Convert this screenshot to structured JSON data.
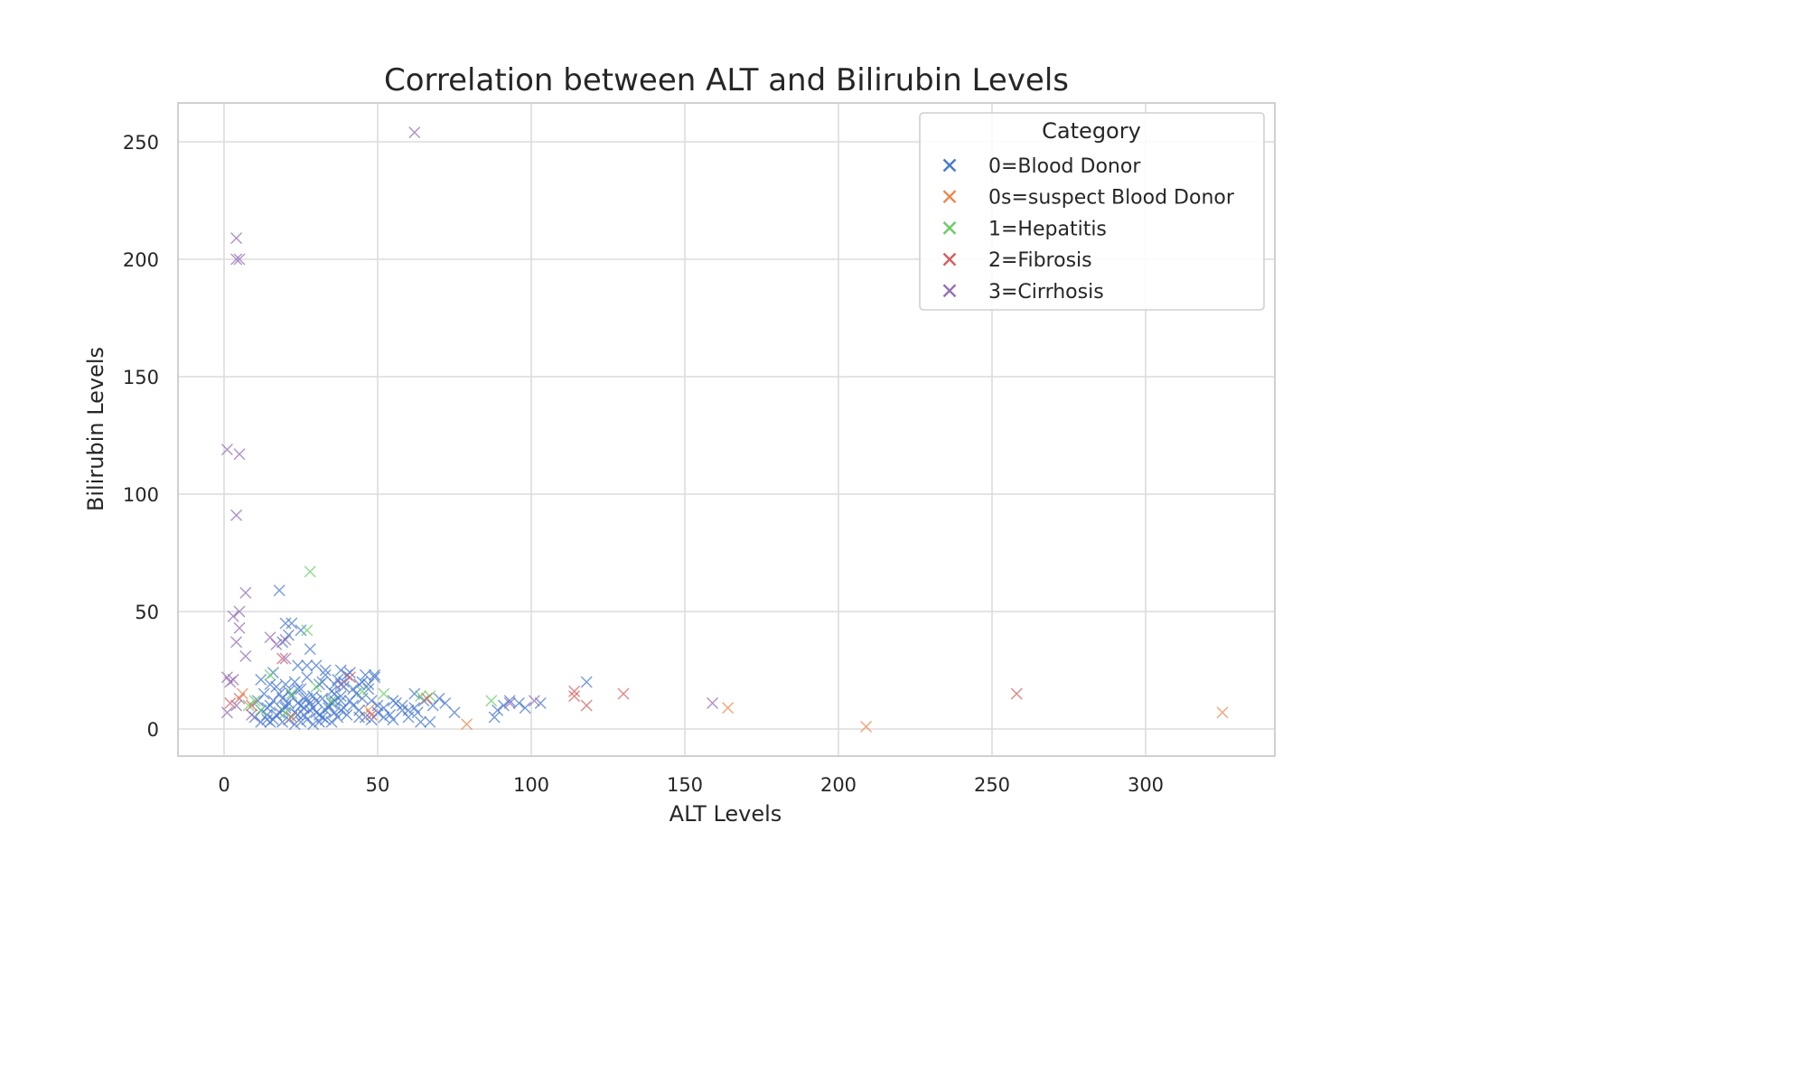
{
  "chart_data": {
    "type": "scatter",
    "title": "Correlation between ALT and Bilirubin Levels",
    "xlabel": "ALT Levels",
    "ylabel": "Bilirubin Levels",
    "xlim": [
      -15,
      340
    ],
    "ylim": [
      -12,
      267
    ],
    "x_ticks": [
      0,
      50,
      100,
      150,
      200,
      250,
      300
    ],
    "y_ticks": [
      0,
      50,
      100,
      150,
      200,
      250
    ],
    "grid": true,
    "marker": "x",
    "legend": {
      "title": "Category",
      "position": "top-right"
    },
    "series": [
      {
        "name": "0=Blood Donor",
        "color": "#4878d0",
        "points": [
          [
            10,
            5
          ],
          [
            12,
            8
          ],
          [
            14,
            6
          ],
          [
            15,
            10
          ],
          [
            16,
            4
          ],
          [
            18,
            7
          ],
          [
            20,
            9
          ],
          [
            22,
            5
          ],
          [
            24,
            11
          ],
          [
            26,
            6
          ],
          [
            28,
            8
          ],
          [
            30,
            12
          ],
          [
            32,
            5
          ],
          [
            34,
            9
          ],
          [
            36,
            7
          ],
          [
            38,
            14
          ],
          [
            40,
            6
          ],
          [
            42,
            10
          ],
          [
            44,
            8
          ],
          [
            46,
            5
          ],
          [
            48,
            12
          ],
          [
            50,
            7
          ],
          [
            52,
            9
          ],
          [
            54,
            6
          ],
          [
            56,
            11
          ],
          [
            58,
            8
          ],
          [
            60,
            5
          ],
          [
            62,
            9
          ],
          [
            11,
            12
          ],
          [
            13,
            15
          ],
          [
            17,
            18
          ],
          [
            19,
            13
          ],
          [
            21,
            16
          ],
          [
            23,
            20
          ],
          [
            25,
            17
          ],
          [
            27,
            22
          ],
          [
            29,
            14
          ],
          [
            31,
            19
          ],
          [
            33,
            23
          ],
          [
            35,
            16
          ],
          [
            37,
            21
          ],
          [
            39,
            18
          ],
          [
            41,
            24
          ],
          [
            43,
            15
          ],
          [
            45,
            20
          ],
          [
            47,
            17
          ],
          [
            49,
            22
          ],
          [
            19,
            3
          ],
          [
            21,
            4
          ],
          [
            23,
            2
          ],
          [
            25,
            3
          ],
          [
            27,
            4
          ],
          [
            29,
            2
          ],
          [
            31,
            3
          ],
          [
            33,
            4
          ],
          [
            35,
            3
          ],
          [
            24,
            6
          ],
          [
            26,
            9
          ],
          [
            28,
            11
          ],
          [
            30,
            7
          ],
          [
            32,
            13
          ],
          [
            34,
            10
          ],
          [
            36,
            12
          ],
          [
            38,
            8
          ],
          [
            16,
            12
          ],
          [
            18,
            15
          ],
          [
            20,
            10
          ],
          [
            22,
            14
          ],
          [
            24,
            17
          ],
          [
            26,
            13
          ],
          [
            14,
            9
          ],
          [
            15,
            3
          ],
          [
            17,
            6
          ],
          [
            19,
            8
          ],
          [
            21,
            11
          ],
          [
            23,
            7
          ],
          [
            25,
            10
          ],
          [
            27,
            13
          ],
          [
            29,
            9
          ],
          [
            31,
            6
          ],
          [
            33,
            8
          ],
          [
            35,
            11
          ],
          [
            37,
            5
          ],
          [
            39,
            9
          ],
          [
            41,
            12
          ],
          [
            18,
            59
          ],
          [
            20,
            45
          ],
          [
            22,
            45
          ],
          [
            25,
            42
          ],
          [
            28,
            34
          ],
          [
            21,
            40
          ],
          [
            19,
            37
          ],
          [
            24,
            27
          ],
          [
            30,
            27
          ],
          [
            33,
            25
          ],
          [
            38,
            25
          ],
          [
            40,
            23
          ],
          [
            46,
            23
          ],
          [
            49,
            23
          ],
          [
            39,
            20
          ],
          [
            44,
            19
          ],
          [
            36,
            19
          ],
          [
            55,
            12
          ],
          [
            58,
            10
          ],
          [
            60,
            8
          ],
          [
            63,
            7
          ],
          [
            65,
            12
          ],
          [
            68,
            10
          ],
          [
            70,
            13
          ],
          [
            72,
            11
          ],
          [
            75,
            7
          ],
          [
            88,
            5
          ],
          [
            89,
            8
          ],
          [
            91,
            10
          ],
          [
            93,
            12
          ],
          [
            96,
            11
          ],
          [
            98,
            9
          ],
          [
            103,
            11
          ],
          [
            118,
            20
          ],
          [
            64,
            3
          ],
          [
            67,
            3
          ],
          [
            55,
            4
          ],
          [
            52,
            5
          ],
          [
            62,
            15
          ],
          [
            12,
            21
          ],
          [
            16,
            24
          ],
          [
            15,
            19
          ],
          [
            20,
            19
          ],
          [
            36,
            15
          ],
          [
            42,
            17
          ],
          [
            47,
            19
          ],
          [
            45,
            13
          ],
          [
            12,
            3
          ],
          [
            14,
            4
          ],
          [
            27,
            27
          ],
          [
            32,
            20
          ],
          [
            38,
            12
          ],
          [
            44,
            5
          ],
          [
            48,
            4
          ],
          [
            50,
            10
          ]
        ]
      },
      {
        "name": "0s=suspect Blood Donor",
        "color": "#ee854a",
        "points": [
          [
            79,
            2
          ],
          [
            209,
            1
          ],
          [
            325,
            7
          ],
          [
            164,
            9
          ],
          [
            6,
            15
          ],
          [
            22,
            5
          ],
          [
            47,
            8
          ]
        ]
      },
      {
        "name": "1=Hepatitis",
        "color": "#6acc64",
        "points": [
          [
            28,
            67
          ],
          [
            27,
            42
          ],
          [
            87,
            12
          ],
          [
            64,
            14
          ],
          [
            52,
            15
          ],
          [
            45,
            16
          ],
          [
            10,
            12
          ],
          [
            8,
            10
          ],
          [
            12,
            8
          ],
          [
            15,
            23
          ],
          [
            22,
            15
          ],
          [
            30,
            18
          ],
          [
            20,
            7
          ],
          [
            35,
            12
          ],
          [
            67,
            14
          ]
        ]
      },
      {
        "name": "2=Fibrosis",
        "color": "#d65f5f",
        "points": [
          [
            114,
            16
          ],
          [
            114,
            14
          ],
          [
            118,
            10
          ],
          [
            130,
            15
          ],
          [
            258,
            15
          ],
          [
            19,
            30
          ],
          [
            41,
            22
          ],
          [
            66,
            13
          ],
          [
            48,
            6
          ],
          [
            2,
            11
          ],
          [
            5,
            13
          ],
          [
            9,
            10
          ]
        ]
      },
      {
        "name": "3=Cirrhosis",
        "color": "#956cb4",
        "points": [
          [
            62,
            254
          ],
          [
            4,
            209
          ],
          [
            4,
            200
          ],
          [
            5,
            200
          ],
          [
            1,
            119
          ],
          [
            5,
            117
          ],
          [
            4,
            91
          ],
          [
            7,
            58
          ],
          [
            5,
            50
          ],
          [
            3,
            48
          ],
          [
            5,
            43
          ],
          [
            4,
            37
          ],
          [
            7,
            31
          ],
          [
            15,
            39
          ],
          [
            17,
            36
          ],
          [
            20,
            38
          ],
          [
            1,
            22
          ],
          [
            3,
            21
          ],
          [
            2,
            20
          ],
          [
            1,
            7
          ],
          [
            159,
            11
          ],
          [
            93,
            11
          ],
          [
            101,
            12
          ],
          [
            4,
            10
          ],
          [
            9,
            6
          ],
          [
            20,
            30
          ],
          [
            38,
            19
          ]
        ]
      }
    ]
  }
}
